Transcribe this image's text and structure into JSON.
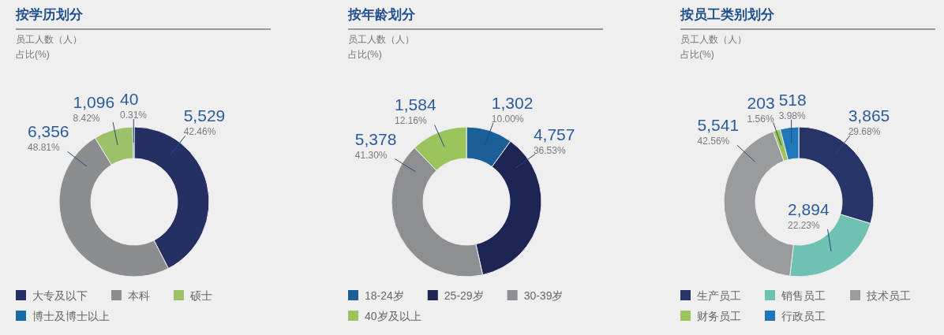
{
  "chart_data": [
    {
      "type": "donut",
      "title": "按学历划分",
      "subtitle": "员工人数（人）",
      "annotations": [
        "占比(%)"
      ],
      "categories": [
        "大专及以下",
        "本科",
        "硕士",
        "博士及博士以上"
      ],
      "values": [
        5529,
        6356,
        1096,
        40
      ],
      "colors": [
        "#252f62",
        "#8b8d90",
        "#9dc06a",
        "#1b6aa6"
      ],
      "value_labels": [
        "5,529\n42.46%",
        "6,356\n48.81%",
        "1,096\n8.42%",
        "40\n0.31%"
      ],
      "legend": "bottom"
    },
    {
      "type": "donut",
      "title": "按年龄划分",
      "subtitle": "员工人数（人）",
      "annotations": [
        "占比(%)"
      ],
      "categories": [
        "18-24岁",
        "25-29岁",
        "30-39岁",
        "40岁及以上"
      ],
      "values": [
        1302,
        4757,
        5378,
        1584
      ],
      "colors": [
        "#1a5f97",
        "#1c2553",
        "#8d8f92",
        "#9ac45c"
      ],
      "value_labels": [
        "1,302\n10.00%",
        "4,757\n36.53%",
        "5,378\n41.30%",
        "1,584\n12.16%"
      ],
      "legend": "bottom"
    },
    {
      "type": "donut",
      "title": "按员工类别划分",
      "subtitle": "员工人数（人）",
      "annotations": [
        "占比(%)"
      ],
      "categories": [
        "生产员工",
        "销售员工",
        "技术员工",
        "财务员工",
        "行政员工"
      ],
      "values": [
        3865,
        2894,
        5541,
        203,
        518
      ],
      "colors": [
        "#263468",
        "#6fc2b3",
        "#9a9b9e",
        "#9bc55b",
        "#1f77ba"
      ],
      "value_labels": [
        "3,865\n29.68%",
        "2,894\n22.23%",
        "5,541\n42.56%",
        "203\n1.56%",
        "518\n3.98%"
      ],
      "legend": "bottom"
    }
  ]
}
